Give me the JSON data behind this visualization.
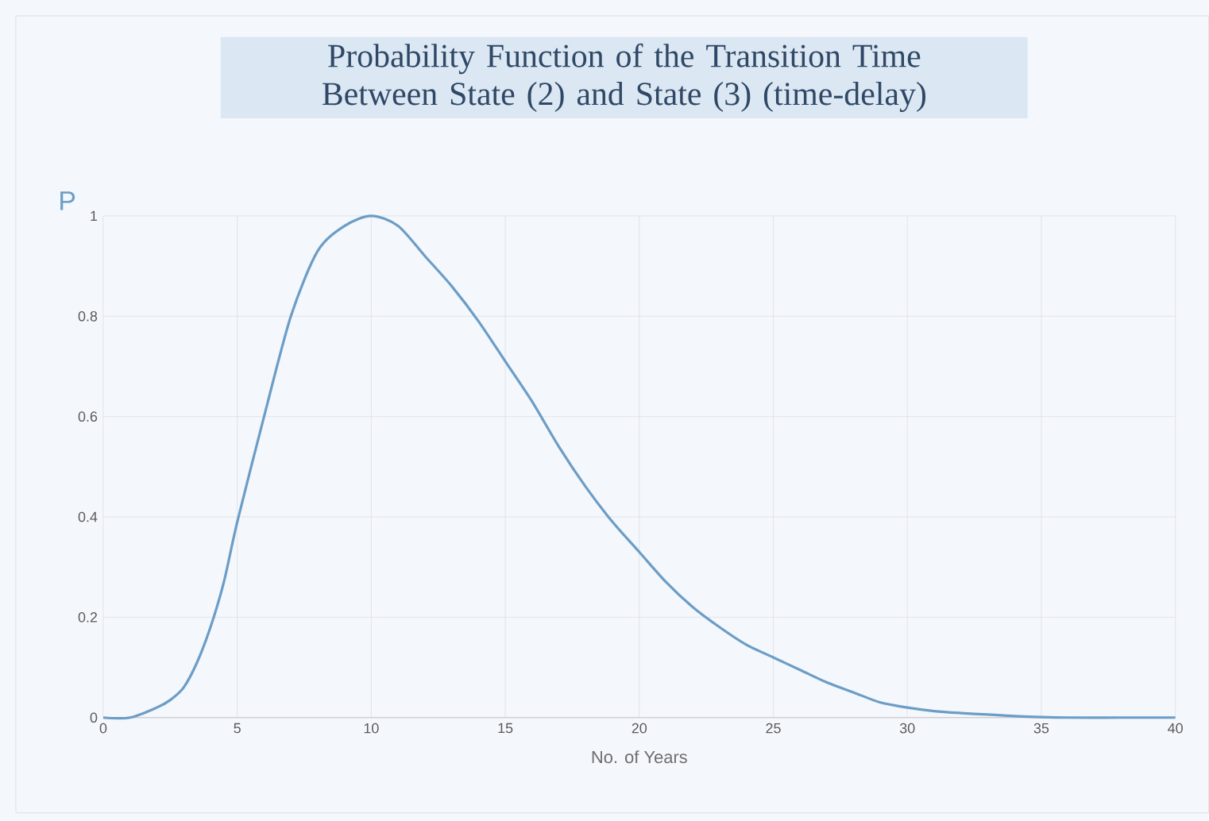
{
  "chart_data": {
    "type": "line",
    "title": "Probability Function of the Transition Time Between State (2) and State (3) (time-delay)",
    "xlabel": "No. of Years",
    "ylabel": "P",
    "x": [
      0,
      1,
      2,
      2.5,
      3,
      3.5,
      4,
      4.5,
      5,
      6,
      7,
      8,
      9,
      10,
      11,
      12,
      13,
      14,
      15,
      16,
      17,
      18,
      19,
      20,
      21,
      22,
      23,
      24,
      25,
      26,
      27,
      28,
      29,
      30,
      31,
      32,
      33,
      34,
      35,
      36,
      38,
      40
    ],
    "series": [
      {
        "color": "#6b9dc6",
        "values": [
          0,
          0,
          0.02,
          0.035,
          0.06,
          0.11,
          0.18,
          0.27,
          0.39,
          0.6,
          0.8,
          0.93,
          0.98,
          1.0,
          0.98,
          0.92,
          0.86,
          0.79,
          0.71,
          0.63,
          0.54,
          0.46,
          0.39,
          0.33,
          0.27,
          0.22,
          0.18,
          0.145,
          0.12,
          0.095,
          0.07,
          0.05,
          0.03,
          0.02,
          0.013,
          0.009,
          0.006,
          0.003,
          0.001,
          0,
          0,
          0
        ]
      }
    ],
    "xlim": [
      0,
      40
    ],
    "xticks": [
      0,
      5,
      10,
      15,
      20,
      25,
      30,
      35,
      40
    ],
    "ylim": [
      0,
      1
    ],
    "yticks": [
      0,
      0.2,
      0.4,
      0.6,
      0.8,
      1
    ],
    "grid": true,
    "marker": "none",
    "line_style": "solid"
  }
}
